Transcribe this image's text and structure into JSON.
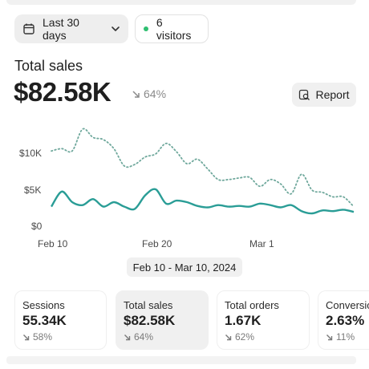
{
  "filters": {
    "date_range_label": "Last 30 days",
    "visitors_label": "6 visitors"
  },
  "summary": {
    "title": "Total sales",
    "value": "$82.58K",
    "delta": "64%",
    "report_label": "Report"
  },
  "chart_data": {
    "type": "line",
    "y_ticks": [
      "$10K",
      "$5K",
      "$0"
    ],
    "x_ticks": [
      "Feb 10",
      "Feb 20",
      "Mar 1"
    ],
    "ylim": [
      0,
      13000
    ],
    "x": [
      "Feb 10",
      "Feb 11",
      "Feb 12",
      "Feb 13",
      "Feb 14",
      "Feb 15",
      "Feb 16",
      "Feb 17",
      "Feb 18",
      "Feb 19",
      "Feb 20",
      "Feb 21",
      "Feb 22",
      "Feb 23",
      "Feb 24",
      "Feb 25",
      "Feb 26",
      "Feb 27",
      "Feb 28",
      "Feb 29",
      "Mar 1",
      "Mar 2",
      "Mar 3",
      "Mar 4",
      "Mar 5",
      "Mar 6",
      "Mar 7",
      "Mar 8",
      "Mar 9",
      "Mar 10"
    ],
    "series": [
      {
        "style": "solid",
        "color": "#2a9d96",
        "values": [
          2600,
          4600,
          3200,
          2800,
          3600,
          2600,
          3200,
          2600,
          2300,
          4100,
          4900,
          3000,
          3400,
          3200,
          2700,
          2500,
          2800,
          2600,
          2700,
          2600,
          3000,
          2800,
          2500,
          2800,
          2000,
          1700,
          2100,
          2000,
          2200,
          1900
        ]
      },
      {
        "style": "dotted",
        "color": "#6fa89c",
        "values": [
          10000,
          10300,
          10000,
          12900,
          11800,
          11500,
          10300,
          8000,
          8200,
          9200,
          9600,
          11000,
          9900,
          8300,
          8900,
          7600,
          6200,
          6200,
          6400,
          6500,
          5300,
          6200,
          5600,
          4300,
          6900,
          4800,
          4500,
          3900,
          3900,
          2600
        ]
      }
    ]
  },
  "date_range": "Feb 10 - Mar 10, 2024",
  "metrics": [
    {
      "label": "Sessions",
      "value": "55.34K",
      "delta": "58%"
    },
    {
      "label": "Total sales",
      "value": "$82.58K",
      "delta": "64%"
    },
    {
      "label": "Total orders",
      "value": "1.67K",
      "delta": "62%"
    },
    {
      "label": "Conversion",
      "value": "2.63%",
      "delta": "11%"
    }
  ]
}
